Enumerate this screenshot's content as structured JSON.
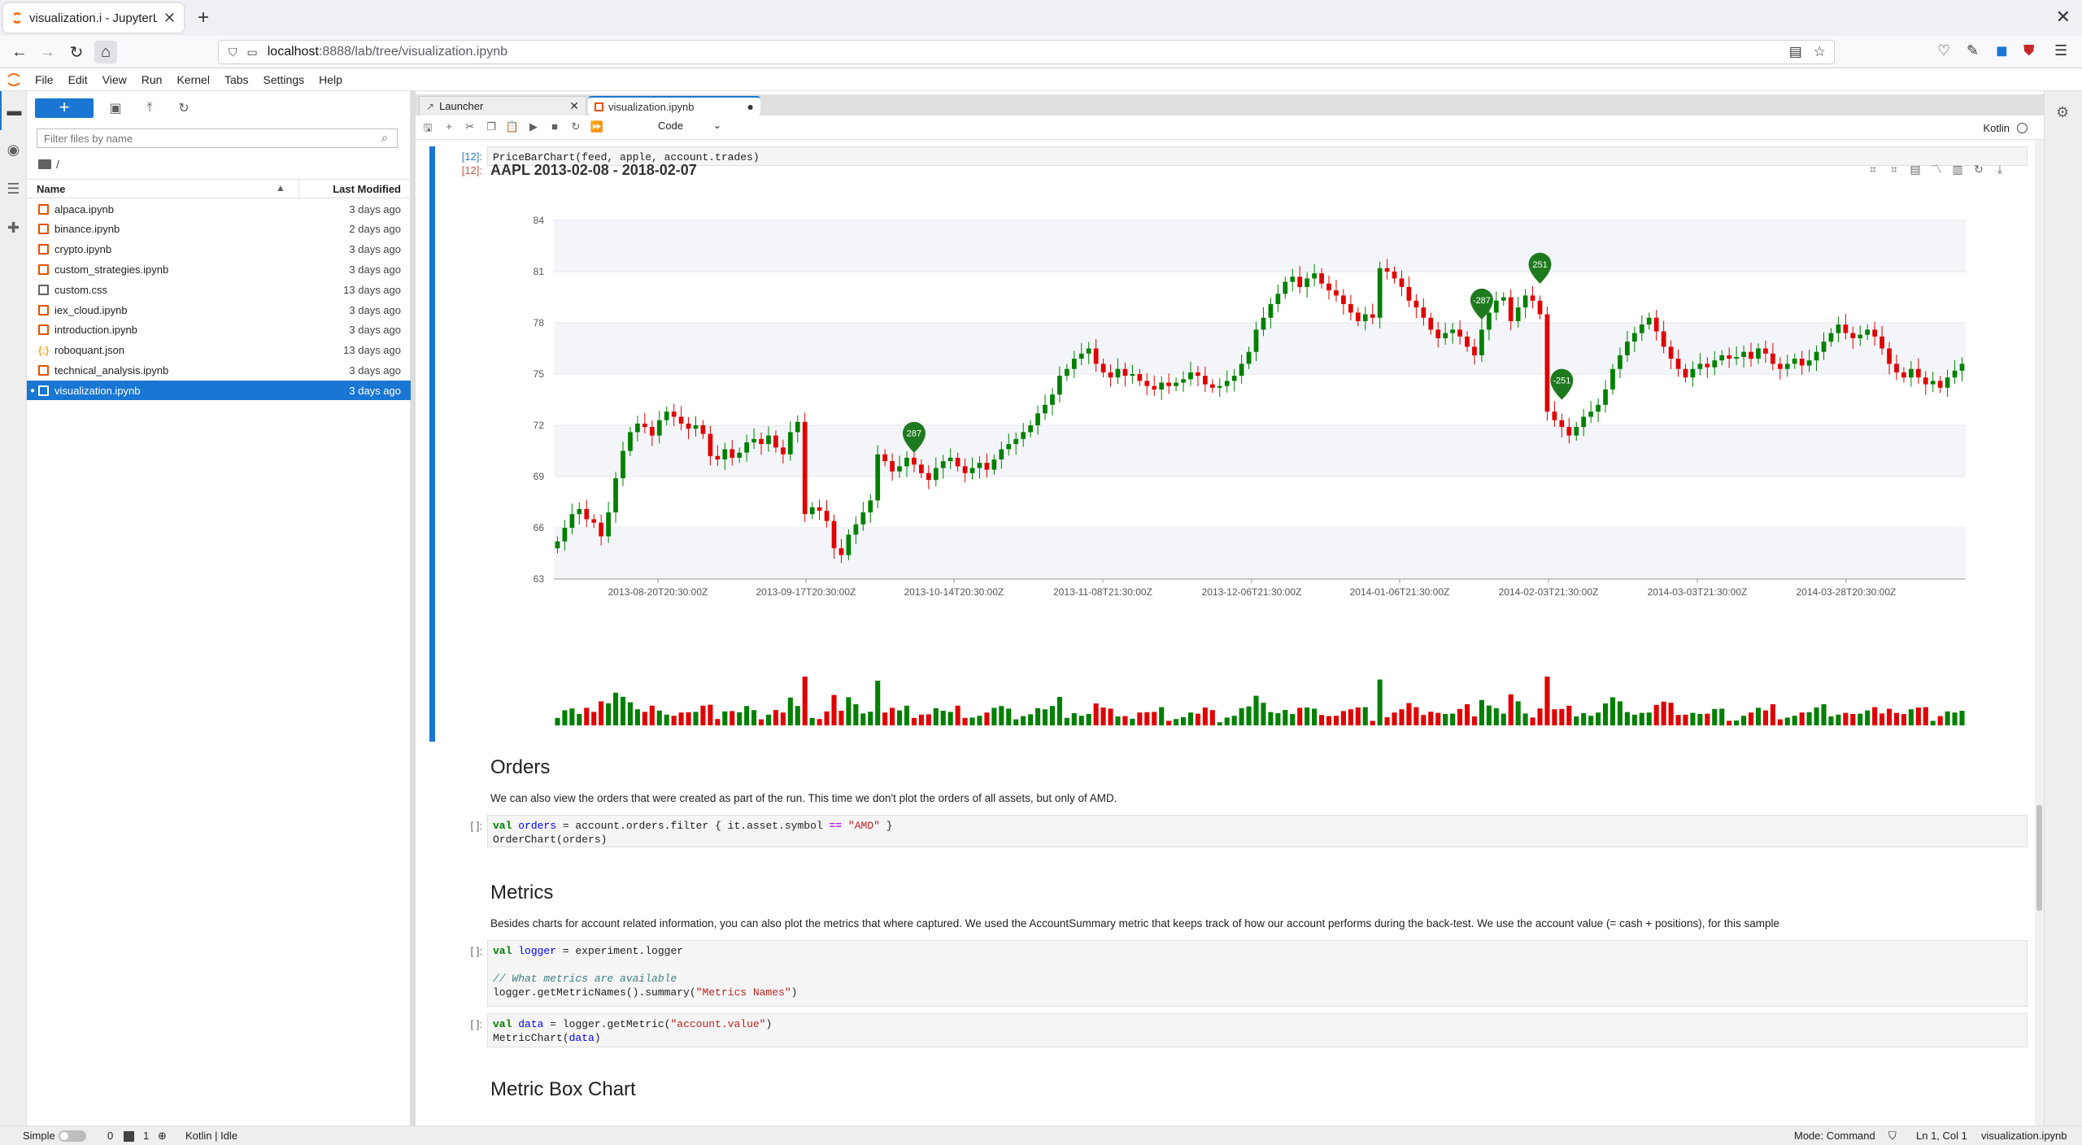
{
  "browser": {
    "tab_title": "visualization.i - JupyterLab",
    "url_host": "localhost",
    "url_path": ":8888/lab/tree/visualization.ipynb"
  },
  "menu": [
    "File",
    "Edit",
    "View",
    "Run",
    "Kernel",
    "Tabs",
    "Settings",
    "Help"
  ],
  "filebrowser": {
    "filter_placeholder": "Filter files by name",
    "breadcrumb": "/",
    "col_name": "Name",
    "col_modified": "Last Modified",
    "files": [
      {
        "name": "alpaca.ipynb",
        "modified": "3 days ago",
        "type": "notebook"
      },
      {
        "name": "binance.ipynb",
        "modified": "2 days ago",
        "type": "notebook"
      },
      {
        "name": "crypto.ipynb",
        "modified": "3 days ago",
        "type": "notebook"
      },
      {
        "name": "custom_strategies.ipynb",
        "modified": "3 days ago",
        "type": "notebook"
      },
      {
        "name": "custom.css",
        "modified": "13 days ago",
        "type": "css"
      },
      {
        "name": "iex_cloud.ipynb",
        "modified": "3 days ago",
        "type": "notebook"
      },
      {
        "name": "introduction.ipynb",
        "modified": "3 days ago",
        "type": "notebook"
      },
      {
        "name": "roboquant.json",
        "modified": "13 days ago",
        "type": "json"
      },
      {
        "name": "technical_analysis.ipynb",
        "modified": "3 days ago",
        "type": "notebook"
      },
      {
        "name": "visualization.ipynb",
        "modified": "3 days ago",
        "type": "notebook",
        "selected": true
      }
    ]
  },
  "doctabs": {
    "launcher": "Launcher",
    "notebook": "visualization.ipynb"
  },
  "toolbar": {
    "cell_type": "Code",
    "kernel": "Kotlin"
  },
  "cells": {
    "pricebar_prompt_in": "[12]:",
    "pricebar_code": "PriceBarChart(feed, apple, account.trades)",
    "pricebar_prompt_out": "[12]:",
    "orders_heading": "Orders",
    "orders_text": "We can also view the orders that were created as part of the run. This time we don't plot the orders of all assets, but only of AMD.",
    "empty_prompt": "[ ]:",
    "metrics_heading": "Metrics",
    "metrics_text": "Besides charts for account related information, you can also plot the metrics that where captured. We used the AccountSummary metric that keeps track of how our account performs during the back-test. We use the account value (= cash + positions), for this sample",
    "metric_box_heading": "Metric Box Chart"
  },
  "statusbar": {
    "mode_label": "Simple",
    "count_a": "0",
    "count_b": "1",
    "kernel_status": "Kotlin | Idle",
    "mode": "Mode: Command",
    "position": "Ln 1, Col 1",
    "file": "visualization.ipynb"
  },
  "chart_data": {
    "type": "candlestick",
    "title": "AAPL 2013-02-08 - 2018-02-07",
    "ylim": [
      63,
      84
    ],
    "yticks": [
      "84",
      "81",
      "78",
      "75",
      "72",
      "69",
      "66",
      "63"
    ],
    "xticks": [
      "2013-08-20T20:30:00Z",
      "2013-09-17T20:30:00Z",
      "2013-10-14T20:30:00Z",
      "2013-11-08T21:30:00Z",
      "2013-12-06T21:30:00Z",
      "2014-01-06T21:30:00Z",
      "2014-02-03T21:30:00Z",
      "2014-03-03T21:30:00Z",
      "2014-03-28T20:30:00Z"
    ],
    "closes": [
      65.2,
      66.0,
      66.8,
      67.1,
      66.5,
      66.3,
      65.5,
      66.9,
      68.9,
      70.5,
      71.6,
      72.1,
      71.9,
      71.4,
      72.3,
      72.8,
      72.5,
      72.1,
      71.8,
      72.0,
      71.5,
      70.2,
      70.0,
      70.6,
      70.1,
      70.4,
      71.0,
      71.2,
      70.9,
      71.4,
      70.7,
      70.3,
      71.6,
      72.2,
      66.8,
      67.2,
      67.0,
      66.4,
      64.8,
      64.4,
      65.6,
      66.2,
      66.9,
      67.6,
      70.3,
      69.9,
      69.3,
      69.6,
      70.1,
      69.7,
      69.2,
      68.8,
      69.5,
      69.9,
      70.1,
      69.6,
      69.2,
      69.5,
      69.8,
      69.4,
      70.0,
      70.6,
      70.9,
      71.2,
      71.6,
      72.0,
      72.7,
      73.2,
      73.8,
      74.9,
      75.3,
      75.9,
      76.2,
      76.5,
      75.6,
      75.1,
      74.8,
      75.3,
      74.9,
      75.0,
      74.6,
      74.3,
      74.1,
      74.5,
      74.3,
      74.5,
      74.7,
      75.1,
      74.9,
      74.4,
      74.2,
      74.3,
      74.6,
      74.9,
      75.6,
      76.3,
      77.6,
      78.3,
      79.1,
      79.7,
      80.4,
      80.7,
      80.1,
      80.6,
      80.9,
      80.3,
      79.9,
      79.6,
      79.1,
      78.6,
      78.1,
      78.5,
      78.3,
      81.2,
      81.0,
      80.6,
      80.1,
      79.3,
      78.9,
      78.3,
      77.6,
      77.1,
      77.4,
      77.6,
      77.2,
      76.6,
      76.1,
      77.6,
      78.6,
      79.3,
      79.5,
      78.1,
      78.9,
      79.6,
      79.3,
      78.5,
      72.8,
      72.3,
      71.9,
      71.4,
      71.9,
      72.5,
      72.8,
      73.2,
      74.1,
      75.3,
      76.1,
      76.9,
      77.4,
      77.9,
      78.3,
      77.5,
      76.6,
      75.9,
      75.3,
      74.8,
      75.3,
      75.6,
      75.4,
      75.8,
      76.1,
      75.9,
      76.0,
      76.3,
      75.9,
      76.5,
      76.2,
      75.6,
      75.3,
      75.6,
      75.9,
      75.5,
      75.8,
      76.3,
      76.9,
      77.4,
      77.9,
      77.4,
      77.1,
      77.3,
      77.6,
      77.2,
      76.5,
      75.6,
      75.1,
      74.8,
      75.3,
      74.8,
      74.4,
      74.6,
      74.2,
      74.8,
      75.2,
      75.6
    ],
    "trades": [
      {
        "index": 49,
        "price": 70.3,
        "label": "287"
      },
      {
        "index": 127,
        "price": 78.1,
        "label": "-287"
      },
      {
        "index": 135,
        "price": 80.2,
        "label": "251"
      },
      {
        "index": 138,
        "price": 73.4,
        "label": "-251"
      }
    ],
    "colors": {
      "up": "#008000",
      "down": "#e00000",
      "marker": "#1f7a1f"
    }
  }
}
